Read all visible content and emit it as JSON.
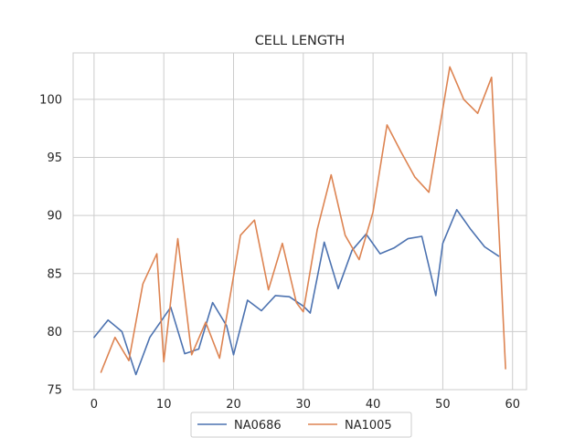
{
  "chart_data": {
    "type": "line",
    "title": "CELL LENGTH",
    "xlabel": "",
    "ylabel": "",
    "xlim": [
      -3,
      62
    ],
    "ylim": [
      75,
      104
    ],
    "xticks": [
      0,
      10,
      20,
      30,
      40,
      50,
      60
    ],
    "yticks": [
      75,
      80,
      85,
      90,
      95,
      100
    ],
    "grid": true,
    "legend_position": "bottom-center",
    "series": [
      {
        "name": "NA0686",
        "color": "#4c72b0",
        "x": [
          0,
          2,
          4,
          6,
          8,
          11,
          13,
          15,
          17,
          19,
          20,
          22,
          24,
          26,
          28,
          30,
          31,
          33,
          35,
          37,
          39,
          41,
          43,
          45,
          47,
          49,
          50,
          52,
          54,
          56,
          58
        ],
        "y": [
          79.5,
          81.0,
          80.0,
          76.3,
          79.5,
          82.1,
          78.1,
          78.5,
          82.5,
          80.5,
          78.0,
          82.7,
          81.8,
          83.1,
          83.0,
          82.2,
          81.6,
          87.7,
          83.7,
          87.0,
          88.4,
          86.7,
          87.2,
          88.0,
          88.2,
          83.1,
          87.6,
          90.5,
          88.8,
          87.3,
          86.5
        ]
      },
      {
        "name": "NA1005",
        "color": "#dd8452",
        "x": [
          1,
          3,
          5,
          7,
          9,
          10,
          12,
          14,
          16,
          18,
          21,
          23,
          25,
          27,
          29,
          30,
          32,
          34,
          36,
          38,
          40,
          42,
          44,
          46,
          48,
          51,
          53,
          55,
          57,
          59
        ],
        "y": [
          76.5,
          79.5,
          77.5,
          84.1,
          86.7,
          77.4,
          88.0,
          78.0,
          80.8,
          77.7,
          88.3,
          89.6,
          83.6,
          87.6,
          82.5,
          81.7,
          88.8,
          93.5,
          88.3,
          86.2,
          90.3,
          97.8,
          95.5,
          93.3,
          92.0,
          102.8,
          100.0,
          98.8,
          101.9,
          76.8
        ]
      }
    ]
  }
}
